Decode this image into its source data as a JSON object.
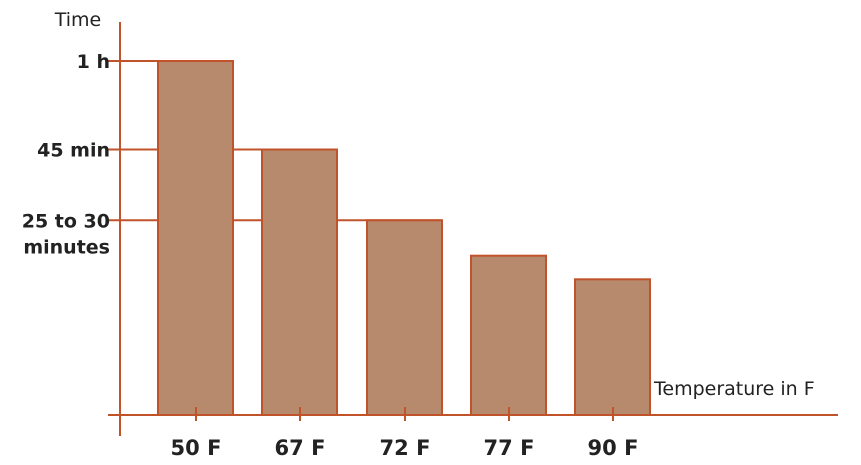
{
  "chart_data": {
    "type": "bar",
    "title": "",
    "ylabel": "Time",
    "xlabel": "Temperature in F",
    "categories": [
      "50 F",
      "67 F",
      "72 F",
      "77 F",
      "90 F"
    ],
    "values_minutes": [
      60,
      45,
      33,
      27,
      23
    ],
    "yticks": [
      {
        "value": 60,
        "lines": [
          "1 h"
        ]
      },
      {
        "value": 45,
        "lines": [
          "45 min"
        ]
      },
      {
        "value": 33,
        "lines": [
          "25 to 30",
          "minutes"
        ]
      }
    ],
    "ylim": [
      0,
      60
    ],
    "grid": false,
    "legend": "none"
  },
  "colors": {
    "bar_fill": "#b78a6e",
    "bar_stroke": "#c0532a",
    "axis": "#c0532a",
    "text": "#222222"
  }
}
